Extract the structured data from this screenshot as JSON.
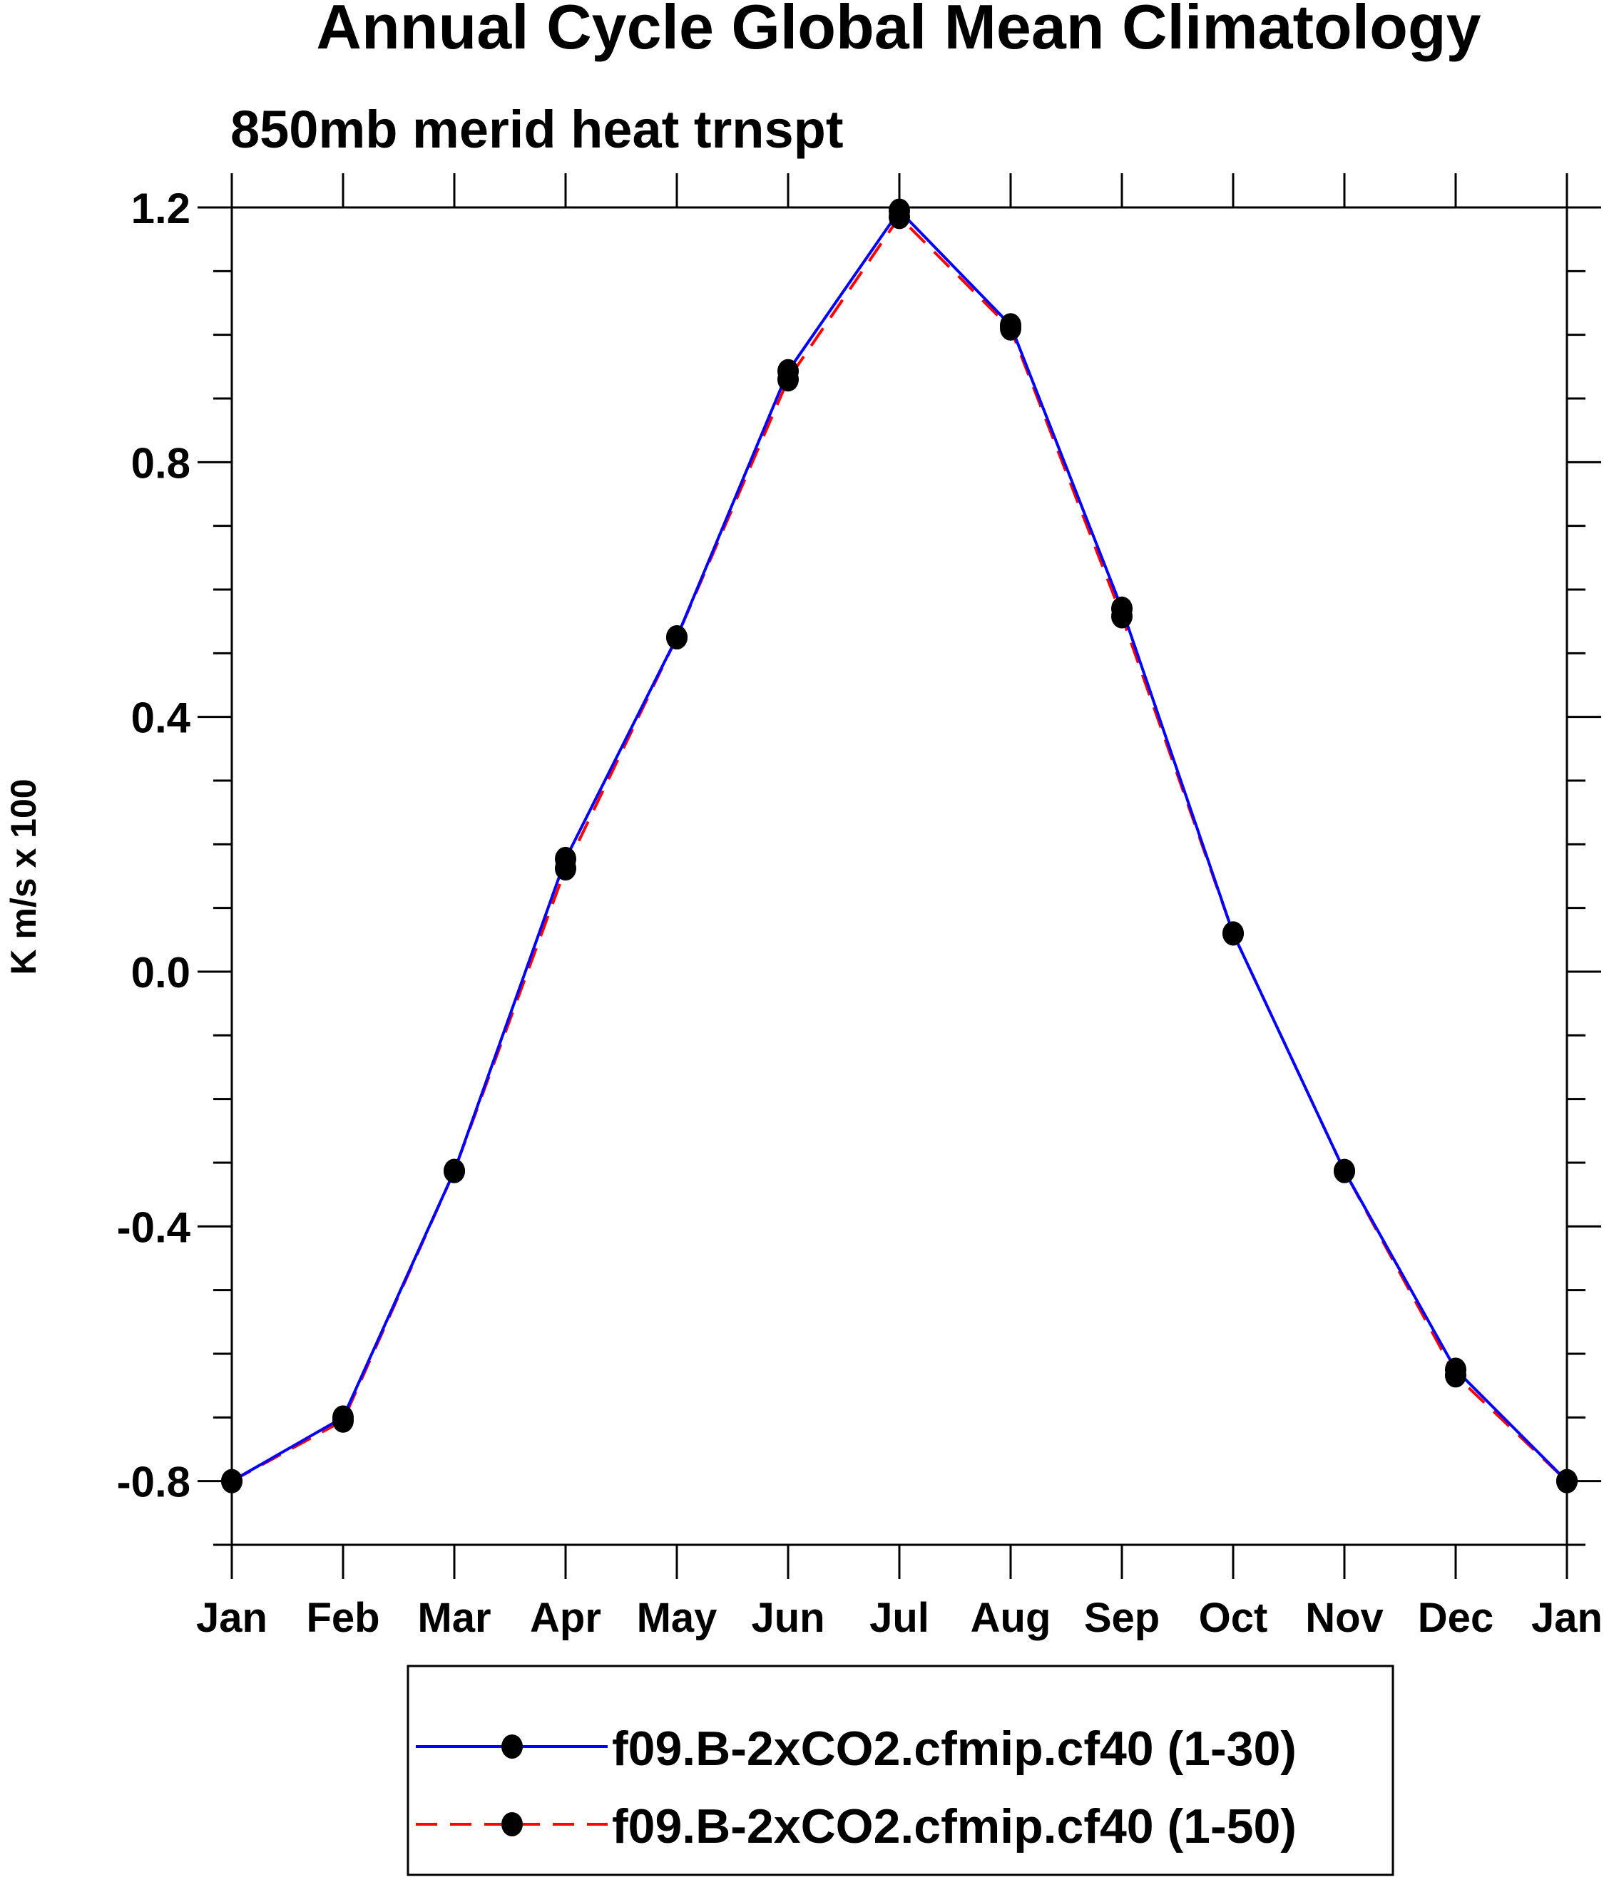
{
  "chart_data": {
    "type": "line",
    "title": "Annual Cycle Global Mean Climatology",
    "subtitle": "850mb merid heat trnspt",
    "xlabel": "",
    "ylabel": "K m/s x 100",
    "categories": [
      "Jan",
      "Feb",
      "Mar",
      "Apr",
      "May",
      "Jun",
      "Jul",
      "Aug",
      "Sep",
      "Oct",
      "Nov",
      "Dec",
      "Jan"
    ],
    "ylim": [
      -0.9,
      1.2
    ],
    "yticks": [
      -0.8,
      -0.4,
      0.0,
      0.4,
      0.8,
      1.2
    ],
    "ytick_labels": [
      "-0.8",
      "-0.4",
      "0.0",
      "0.4",
      "0.8",
      "1.2"
    ],
    "yminor_step": 0.1,
    "grid": false,
    "legend_position": "bottom",
    "series": [
      {
        "name": "f09.B-2xCO2.cfmip.cf40 (1-30)",
        "color": "#0000ff",
        "dash": "solid",
        "marker": "filled-circle",
        "values": [
          -0.8,
          -0.7,
          -0.313,
          0.177,
          0.525,
          0.943,
          1.195,
          1.015,
          0.57,
          0.06,
          -0.313,
          -0.625,
          -0.8
        ]
      },
      {
        "name": "f09.B-2xCO2.cfmip.cf40 (1-50)",
        "color": "#ff0000",
        "dash": "dashed",
        "marker": "filled-circle",
        "values": [
          -0.8,
          -0.705,
          -0.313,
          0.162,
          0.525,
          0.93,
          1.185,
          1.01,
          0.558,
          0.06,
          -0.313,
          -0.634,
          -0.8
        ]
      }
    ]
  }
}
